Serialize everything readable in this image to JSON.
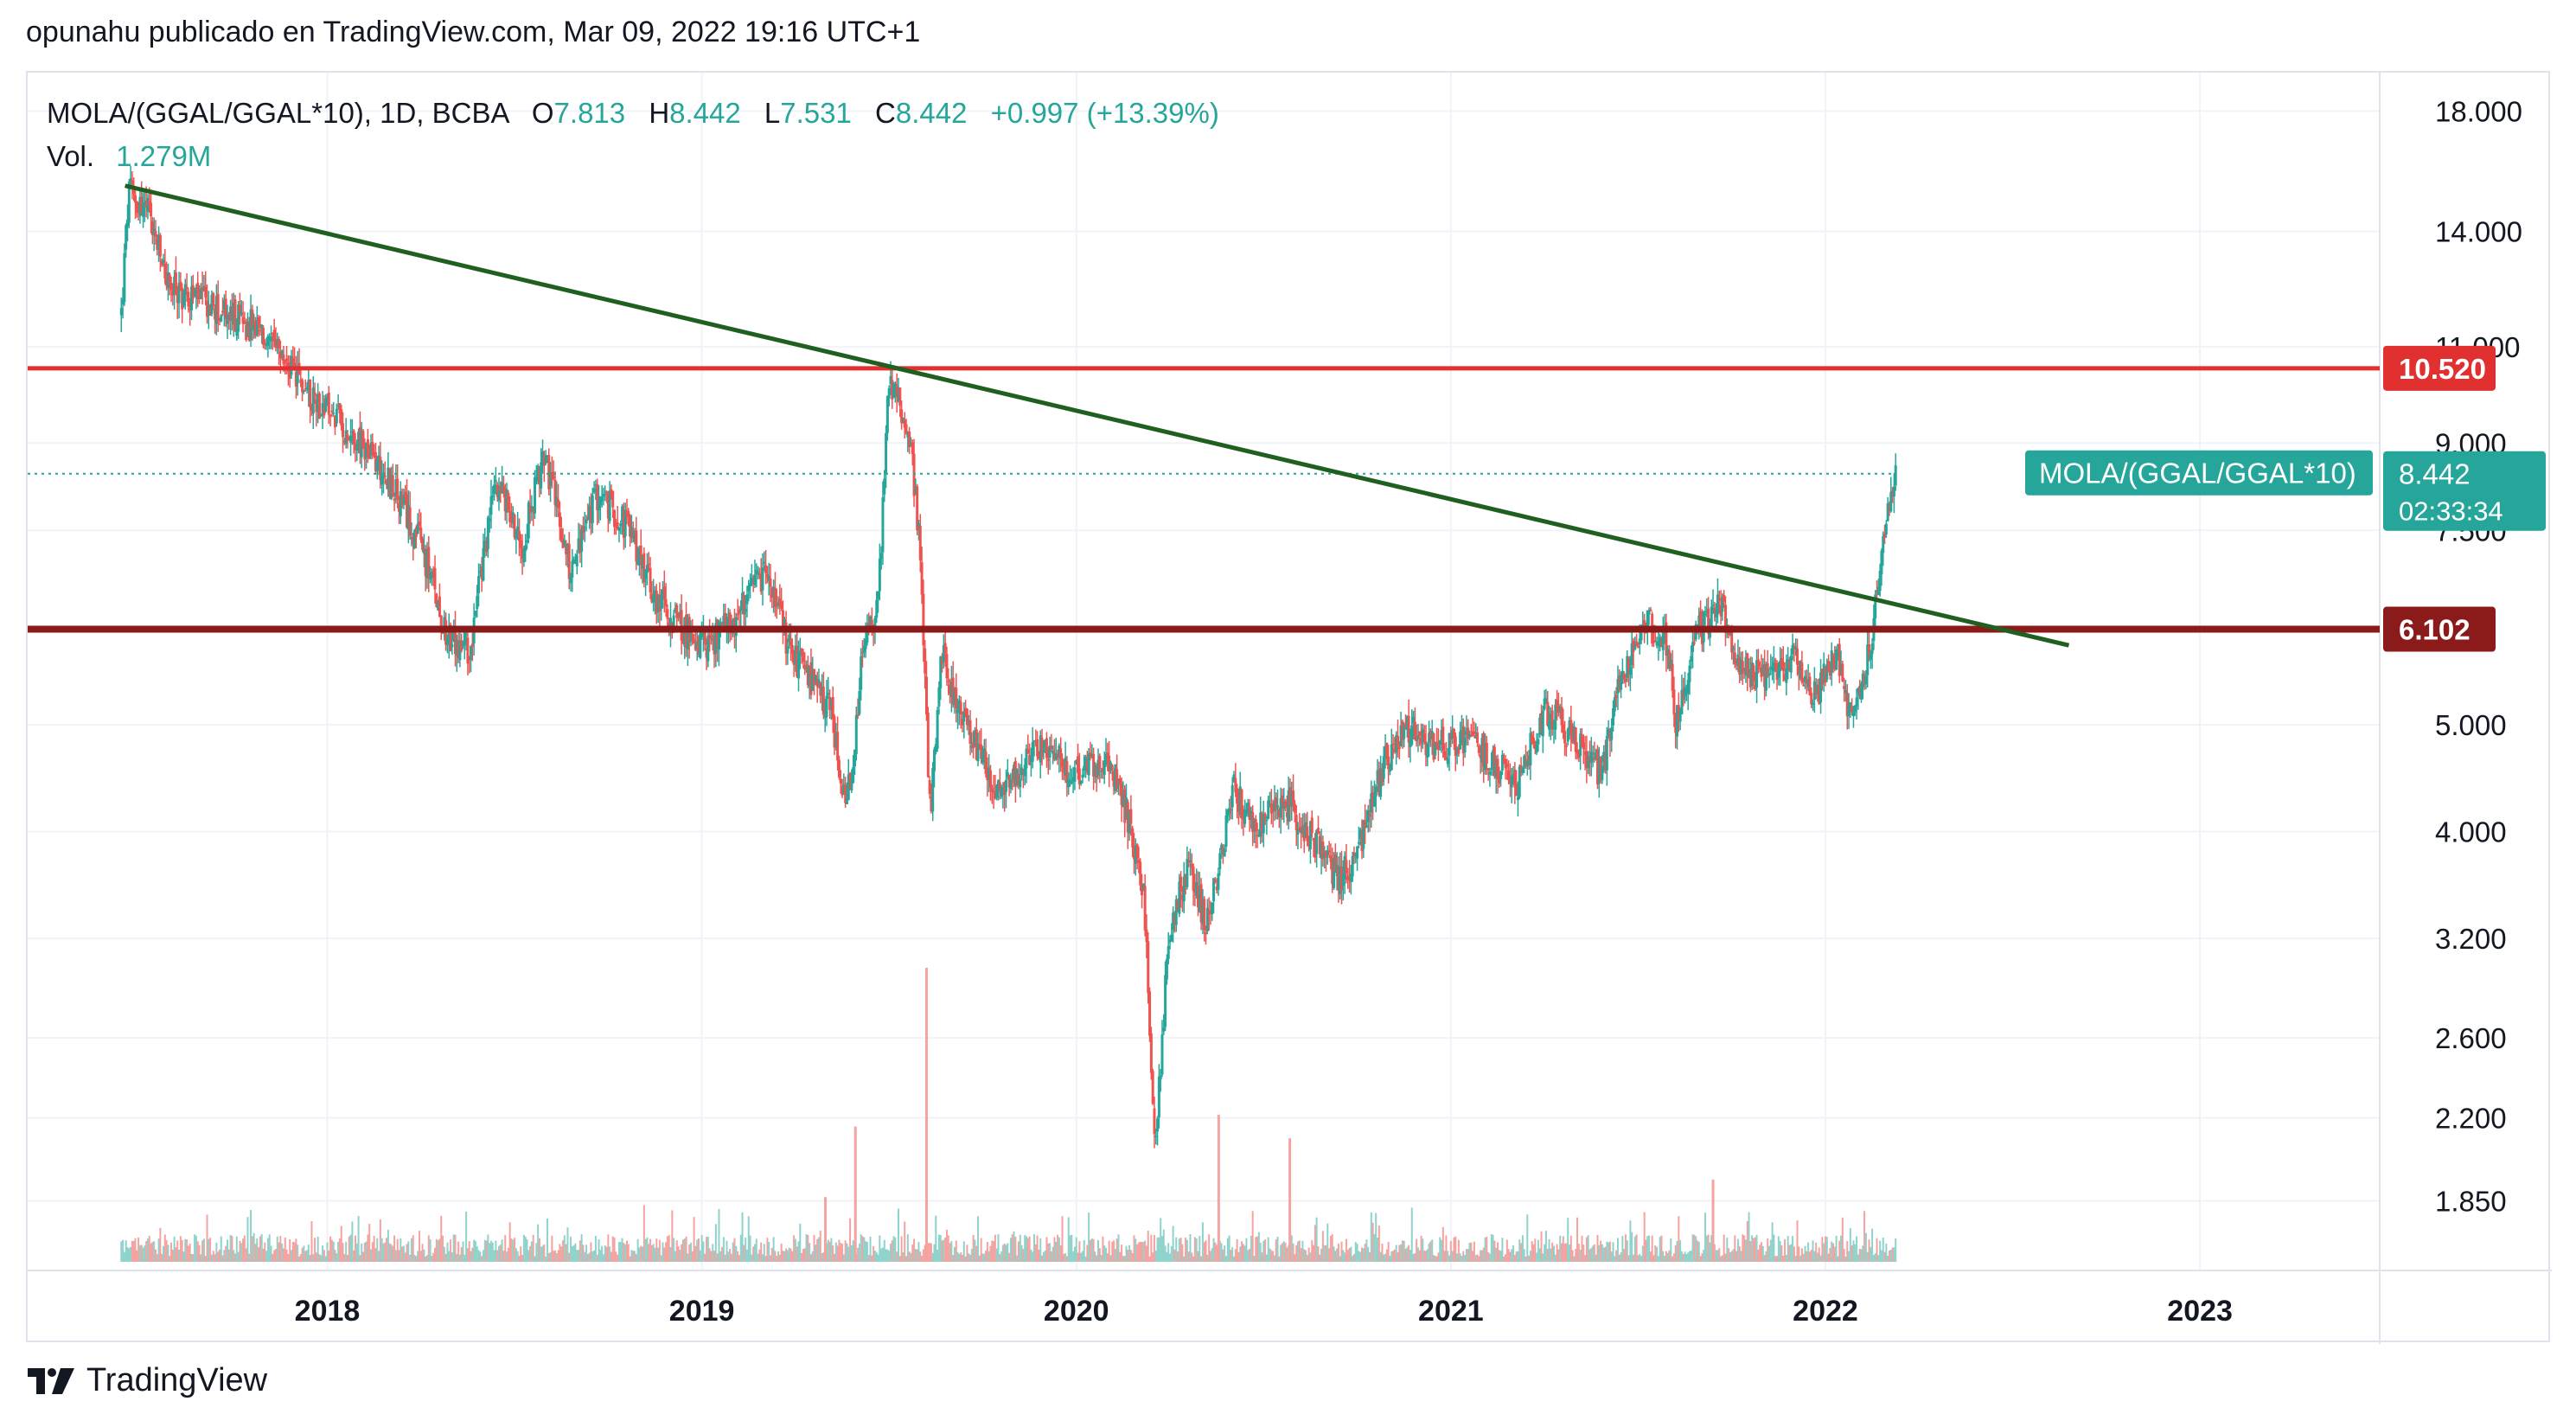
{
  "header": {
    "publisher_line": "opunahu publicado en TradingView.com, Mar 09, 2022 19:16 UTC+1"
  },
  "legend": {
    "symbol": "MOLA/(GGAL/GGAL*10), 1D, BCBA",
    "open_label": "O",
    "open": "7.813",
    "high_label": "H",
    "high": "8.442",
    "low_label": "L",
    "low": "7.531",
    "close_label": "C",
    "close": "8.442",
    "change": "+0.997 (+13.39%)",
    "volume_label": "Vol.",
    "volume": "1.279M"
  },
  "footer": {
    "brand": "TradingView"
  },
  "colors": {
    "up": "#26a69a",
    "down": "#ef5350",
    "trendline": "#1f5f1f",
    "resistance": "#e03030",
    "support": "#8b1a1a",
    "grid": "#f0f3fa",
    "axis_text": "#131722",
    "badge_text": "#ffffff"
  },
  "chart_data": {
    "type": "candlestick",
    "scale": "log",
    "ylim": [
      1.6,
      19.5
    ],
    "x_range_years": [
      2017.2,
      2023.48
    ],
    "y_ticks": [
      {
        "value": 18.0,
        "label": "18.000"
      },
      {
        "value": 14.0,
        "label": "14.000"
      },
      {
        "value": 11.0,
        "label": "11.000"
      },
      {
        "value": 9.0,
        "label": "9.000"
      },
      {
        "value": 7.5,
        "label": "7.500"
      },
      {
        "value": 5.0,
        "label": "5.000"
      },
      {
        "value": 4.0,
        "label": "4.000"
      },
      {
        "value": 3.2,
        "label": "3.200"
      },
      {
        "value": 2.6,
        "label": "2.600"
      },
      {
        "value": 2.2,
        "label": "2.200"
      },
      {
        "value": 1.85,
        "label": "1.850"
      }
    ],
    "x_ticks": [
      {
        "value": 2018.0,
        "label": "2018"
      },
      {
        "value": 2019.0,
        "label": "2019"
      },
      {
        "value": 2020.0,
        "label": "2020"
      },
      {
        "value": 2021.0,
        "label": "2021"
      },
      {
        "value": 2022.0,
        "label": "2022"
      },
      {
        "value": 2023.0,
        "label": "2023"
      }
    ],
    "price_path": [
      [
        2017.45,
        11.8
      ],
      [
        2017.47,
        15.2
      ],
      [
        2017.52,
        14.6
      ],
      [
        2017.58,
        12.4
      ],
      [
        2017.65,
        12.2
      ],
      [
        2017.72,
        11.8
      ],
      [
        2017.8,
        11.5
      ],
      [
        2017.87,
        10.8
      ],
      [
        2017.95,
        10.0
      ],
      [
        2018.05,
        9.3
      ],
      [
        2018.15,
        8.5
      ],
      [
        2018.25,
        7.3
      ],
      [
        2018.33,
        5.9
      ],
      [
        2018.38,
        5.85
      ],
      [
        2018.45,
        8.4
      ],
      [
        2018.52,
        7.3
      ],
      [
        2018.58,
        8.8
      ],
      [
        2018.65,
        6.9
      ],
      [
        2018.72,
        8.1
      ],
      [
        2018.8,
        7.6
      ],
      [
        2018.87,
        6.6
      ],
      [
        2018.95,
        6.1
      ],
      [
        2019.02,
        5.9
      ],
      [
        2019.1,
        6.3
      ],
      [
        2019.17,
        6.9
      ],
      [
        2019.23,
        5.9
      ],
      [
        2019.3,
        5.4
      ],
      [
        2019.35,
        5.1
      ],
      [
        2019.37,
        4.3
      ],
      [
        2019.4,
        4.4
      ],
      [
        2019.43,
        5.9
      ],
      [
        2019.47,
        6.4
      ],
      [
        2019.5,
        10.3
      ],
      [
        2019.55,
        9.4
      ],
      [
        2019.58,
        7.4
      ],
      [
        2019.61,
        4.1
      ],
      [
        2019.64,
        5.8
      ],
      [
        2019.7,
        5.0
      ],
      [
        2019.8,
        4.3
      ],
      [
        2019.9,
        4.8
      ],
      [
        2020.0,
        4.5
      ],
      [
        2020.08,
        4.7
      ],
      [
        2020.14,
        4.1
      ],
      [
        2020.18,
        3.5
      ],
      [
        2020.21,
        2.1
      ],
      [
        2020.25,
        3.3
      ],
      [
        2020.3,
        3.7
      ],
      [
        2020.35,
        3.3
      ],
      [
        2020.42,
        4.4
      ],
      [
        2020.48,
        4.0
      ],
      [
        2020.55,
        4.3
      ],
      [
        2020.62,
        4.0
      ],
      [
        2020.7,
        3.6
      ],
      [
        2020.76,
        3.9
      ],
      [
        2020.82,
        4.6
      ],
      [
        2020.88,
        5.0
      ],
      [
        2020.95,
        4.8
      ],
      [
        2021.05,
        4.8
      ],
      [
        2021.12,
        4.6
      ],
      [
        2021.18,
        4.4
      ],
      [
        2021.25,
        5.2
      ],
      [
        2021.32,
        4.9
      ],
      [
        2021.4,
        4.5
      ],
      [
        2021.45,
        5.4
      ],
      [
        2021.52,
        6.2
      ],
      [
        2021.58,
        5.9
      ],
      [
        2021.6,
        5.0
      ],
      [
        2021.65,
        6.0
      ],
      [
        2021.72,
        6.4
      ],
      [
        2021.78,
        5.6
      ],
      [
        2021.85,
        5.5
      ],
      [
        2021.92,
        5.8
      ],
      [
        2021.97,
        5.3
      ],
      [
        2022.03,
        5.8
      ],
      [
        2022.06,
        5.1
      ],
      [
        2022.1,
        5.5
      ],
      [
        2022.13,
        6.2
      ],
      [
        2022.16,
        7.6
      ],
      [
        2022.19,
        8.442
      ]
    ],
    "trendline": {
      "start": [
        2017.46,
        15.4
      ],
      "end": [
        2022.65,
        5.9
      ]
    },
    "levels": [
      {
        "name": "resistance",
        "value": 10.52,
        "label": "10.520"
      },
      {
        "name": "support",
        "value": 6.102,
        "label": "6.102"
      }
    ],
    "last_price": {
      "value": 8.442,
      "label": "8.442",
      "countdown": "02:33:34",
      "symbol_badge": "MOLA/(GGAL/GGAL*10)"
    },
    "volume_peaks": [
      {
        "x": 2019.6,
        "rel": 1.0
      },
      {
        "x": 2019.41,
        "rel": 0.46
      },
      {
        "x": 2020.38,
        "rel": 0.5
      },
      {
        "x": 2020.57,
        "rel": 0.42
      },
      {
        "x": 2019.33,
        "rel": 0.22
      },
      {
        "x": 2021.7,
        "rel": 0.28
      }
    ]
  }
}
